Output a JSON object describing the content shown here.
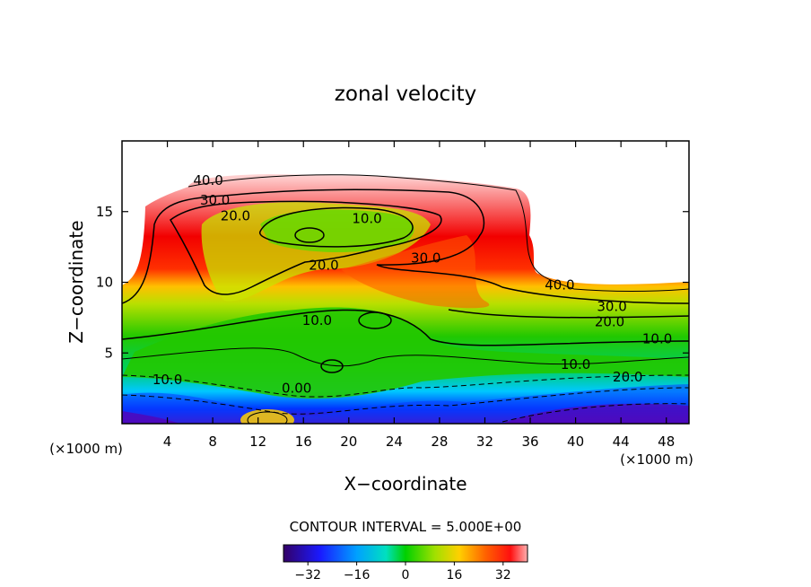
{
  "chart_data": {
    "type": "contour",
    "title": "zonal velocity",
    "xlabel": "X−coordinate",
    "ylabel": "Z−coordinate",
    "x_unit_left": "(×1000 m)",
    "x_unit_right": "(×1000 m)",
    "xlim": [
      0,
      50
    ],
    "ylim": [
      0,
      20
    ],
    "xticks": [
      4,
      8,
      12,
      16,
      20,
      24,
      28,
      32,
      36,
      40,
      44,
      48
    ],
    "yticks": [
      5,
      10,
      15
    ],
    "contour_interval_text": "CONTOUR INTERVAL = 5.000E+00",
    "colorbar": {
      "min": -40,
      "max": 40,
      "ticks": [
        -32,
        -16,
        0,
        16,
        32
      ],
      "tick_labels": [
        "−32",
        "−16",
        "0",
        "16",
        "32"
      ]
    },
    "contour_labels": [
      {
        "text": "40.0",
        "x": 7.6,
        "y": 17.2
      },
      {
        "text": "30.0",
        "x": 8.2,
        "y": 15.8
      },
      {
        "text": "20.0",
        "x": 10.0,
        "y": 14.7
      },
      {
        "text": "10.0",
        "x": 21.6,
        "y": 14.5
      },
      {
        "text": "20.0",
        "x": 17.8,
        "y": 11.2
      },
      {
        "text": "30.0",
        "x": 26.8,
        "y": 11.7
      },
      {
        "text": "40.0",
        "x": 38.6,
        "y": 9.8
      },
      {
        "text": "30.0",
        "x": 43.2,
        "y": 8.3
      },
      {
        "text": "20.0",
        "x": 43.0,
        "y": 7.2
      },
      {
        "text": "10.0",
        "x": 17.2,
        "y": 7.3
      },
      {
        "text": "10.0",
        "x": 47.2,
        "y": 6.0
      },
      {
        "text": "10.0",
        "x": 40.0,
        "y": 4.2
      },
      {
        "text": "20.0",
        "x": 44.6,
        "y": 3.3
      },
      {
        "text": "10.0",
        "x": 4.0,
        "y": 3.1
      },
      {
        "text": "0.00",
        "x": 15.4,
        "y": 2.5
      }
    ]
  }
}
